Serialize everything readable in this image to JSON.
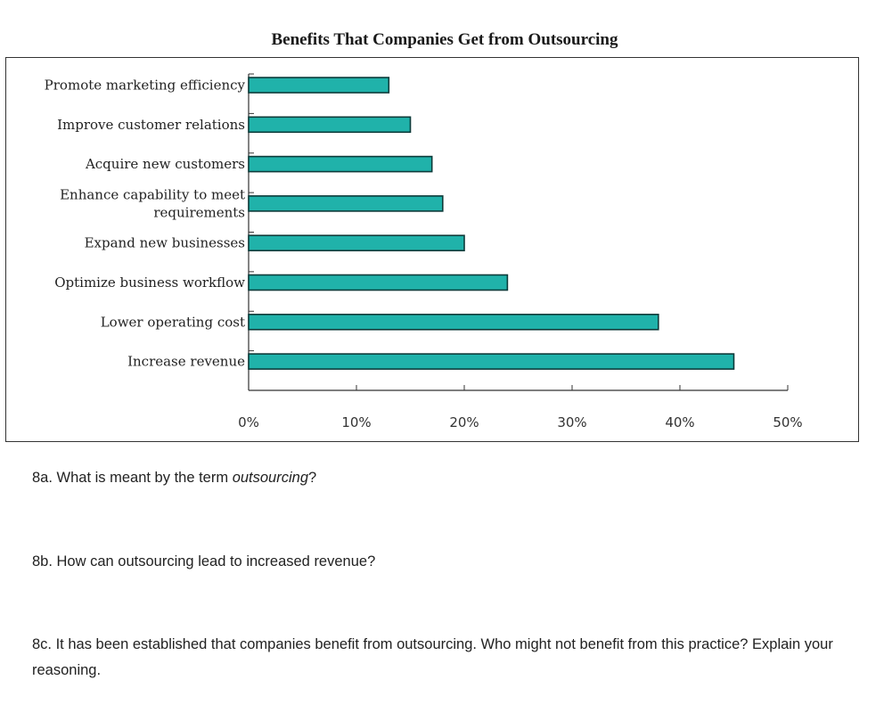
{
  "chart_data": {
    "type": "bar",
    "orientation": "horizontal",
    "title": "Benefits That Companies Get from Outsourcing",
    "categories": [
      "Promote marketing efficiency",
      "Improve customer relations",
      "Acquire new customers",
      "Enhance capability to meet requirements",
      "Expand new businesses",
      "Optimize business workflow",
      "Lower operating cost",
      "Increase  revenue"
    ],
    "category_lines": [
      [
        "Promote marketing efficiency"
      ],
      [
        "Improve customer relations"
      ],
      [
        "Acquire new customers"
      ],
      [
        "Enhance capability to meet",
        "requirements"
      ],
      [
        "Expand new businesses"
      ],
      [
        "Optimize business workflow"
      ],
      [
        "Lower operating cost"
      ],
      [
        "Increase  revenue"
      ]
    ],
    "values": [
      13,
      15,
      17,
      18,
      20,
      24,
      38,
      45
    ],
    "xlim": [
      0,
      50
    ],
    "xticks": [
      0,
      10,
      20,
      30,
      40,
      50
    ],
    "xtick_labels": [
      "0%",
      "10%",
      "20%",
      "30%",
      "40%",
      "50%"
    ],
    "xlabel": "",
    "ylabel": "",
    "grid": false,
    "bar_color": "#20b2aa",
    "bar_edge_color": "#0d3b3a"
  },
  "questions": [
    {
      "prefix": "8a. What is meant by the term ",
      "emphasis": "outsourcing",
      "suffix": "?"
    },
    {
      "text": "8b. How can outsourcing lead to increased revenue?"
    },
    {
      "text": "8c. It has been established that companies benefit from outsourcing. Who might not benefit from this practice? Explain your reasoning."
    }
  ]
}
